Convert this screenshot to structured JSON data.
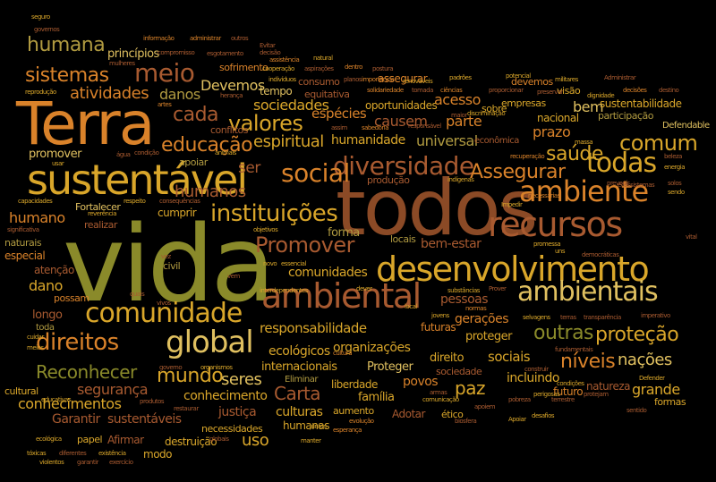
{
  "palette": {
    "background": "#000000",
    "olive": "#8a8a2a",
    "gold": "#d9a62a",
    "orange": "#d9822a",
    "brown": "#8b4a26",
    "rust": "#a85a30",
    "lightgold": "#e0c060",
    "khaki": "#b09a40"
  },
  "words": [
    {
      "id": "vida",
      "text": "vida"
    },
    {
      "id": "todos",
      "text": "todos"
    },
    {
      "id": "terra",
      "text": "Terra"
    },
    {
      "id": "sustentavel",
      "text": "sustentável"
    },
    {
      "id": "desenvolvimento",
      "text": "desenvolvimento"
    },
    {
      "id": "recursos",
      "text": "recursos"
    },
    {
      "id": "ambiental",
      "text": "ambiental"
    },
    {
      "id": "ambiente",
      "text": "ambiente"
    },
    {
      "id": "ambientais",
      "text": "ambientais"
    },
    {
      "id": "comunidade",
      "text": "comunidade"
    },
    {
      "id": "global",
      "text": "global"
    },
    {
      "id": "diversidade",
      "text": "diversidade"
    },
    {
      "id": "todas",
      "text": "todas"
    },
    {
      "id": "comum",
      "text": "comum"
    },
    {
      "id": "social",
      "text": "social"
    },
    {
      "id": "instituicoes",
      "text": "instituições"
    },
    {
      "id": "direitos",
      "text": "direitos"
    },
    {
      "id": "promover_cap",
      "text": "Promover"
    },
    {
      "id": "humana",
      "text": "humana"
    },
    {
      "id": "sistemas",
      "text": "sistemas"
    },
    {
      "id": "meio",
      "text": "meio"
    },
    {
      "id": "valores",
      "text": "valores"
    },
    {
      "id": "educacao",
      "text": "educação"
    },
    {
      "id": "espiritual",
      "text": "espiritual"
    },
    {
      "id": "cada",
      "text": "cada"
    },
    {
      "id": "atividades",
      "text": "atividades"
    },
    {
      "id": "danos",
      "text": "danos"
    },
    {
      "id": "devemos_cap",
      "text": "Devemos"
    },
    {
      "id": "sociedades",
      "text": "sociedades"
    },
    {
      "id": "especies",
      "text": "espécies"
    },
    {
      "id": "acesso",
      "text": "acesso"
    },
    {
      "id": "causem",
      "text": "causem"
    },
    {
      "id": "humanidade",
      "text": "humanidade"
    },
    {
      "id": "universal",
      "text": "universal"
    },
    {
      "id": "parte",
      "text": "parte"
    },
    {
      "id": "assegurar_cap",
      "text": "Assegurar"
    },
    {
      "id": "saude",
      "text": "saúde"
    },
    {
      "id": "prazo",
      "text": "prazo"
    },
    {
      "id": "bem",
      "text": "bem"
    },
    {
      "id": "nacional",
      "text": "nacional"
    },
    {
      "id": "sustentabilidade",
      "text": "sustentabilidade"
    },
    {
      "id": "participacao",
      "text": "participação"
    },
    {
      "id": "defendable",
      "text": "Defendable"
    },
    {
      "id": "promover",
      "text": "promover"
    },
    {
      "id": "apoiar",
      "text": "apoiar"
    },
    {
      "id": "ser",
      "text": "ser"
    },
    {
      "id": "humanos",
      "text": "humanos"
    },
    {
      "id": "humano",
      "text": "humano"
    },
    {
      "id": "fortalecer",
      "text": "Fortalecer"
    },
    {
      "id": "realizar",
      "text": "realizar"
    },
    {
      "id": "cumprir",
      "text": "cumprir"
    },
    {
      "id": "forma",
      "text": "forma"
    },
    {
      "id": "comunidades",
      "text": "comunidades"
    },
    {
      "id": "bem_estar",
      "text": "bem-estar"
    },
    {
      "id": "locais",
      "text": "locais"
    },
    {
      "id": "pessoas",
      "text": "pessoas"
    },
    {
      "id": "geracoes",
      "text": "gerações"
    },
    {
      "id": "responsabilidade",
      "text": "responsabilidade"
    },
    {
      "id": "futuras",
      "text": "futuras"
    },
    {
      "id": "outras",
      "text": "outras"
    },
    {
      "id": "protecao",
      "text": "proteção"
    },
    {
      "id": "proteger",
      "text": "proteger"
    },
    {
      "id": "dano",
      "text": "dano"
    },
    {
      "id": "possam",
      "text": "possam"
    },
    {
      "id": "longo",
      "text": "longo"
    },
    {
      "id": "toda",
      "text": "toda"
    },
    {
      "id": "ecologicos",
      "text": "ecológicos"
    },
    {
      "id": "organizacoes",
      "text": "organizações"
    },
    {
      "id": "internacionais",
      "text": "internacionais"
    },
    {
      "id": "direito",
      "text": "direito"
    },
    {
      "id": "sociais",
      "text": "sociais"
    },
    {
      "id": "niveis",
      "text": "níveis"
    },
    {
      "id": "nacoes",
      "text": "nações"
    },
    {
      "id": "reconhecer",
      "text": "Reconhecer"
    },
    {
      "id": "seguranca",
      "text": "segurança"
    },
    {
      "id": "mundo",
      "text": "mundo"
    },
    {
      "id": "seres",
      "text": "seres"
    },
    {
      "id": "carta",
      "text": "Carta"
    },
    {
      "id": "liberdade",
      "text": "liberdade"
    },
    {
      "id": "familia",
      "text": "família"
    },
    {
      "id": "povos",
      "text": "povos"
    },
    {
      "id": "paz",
      "text": "paz"
    },
    {
      "id": "incluindo",
      "text": "incluindo"
    },
    {
      "id": "proteger_cap",
      "text": "Proteger"
    },
    {
      "id": "sociedade",
      "text": "sociedade"
    },
    {
      "id": "grande",
      "text": "grande"
    },
    {
      "id": "conhecimentos",
      "text": "conhecimentos"
    },
    {
      "id": "conhecimento",
      "text": "conhecimento"
    },
    {
      "id": "justica",
      "text": "justiça"
    },
    {
      "id": "culturas",
      "text": "culturas"
    },
    {
      "id": "garantir_cap",
      "text": "Garantir"
    },
    {
      "id": "sustentaveis",
      "text": "sustentáveis"
    },
    {
      "id": "eliminar",
      "text": "Eliminar"
    },
    {
      "id": "humanas",
      "text": "humanas"
    },
    {
      "id": "necessidades",
      "text": "necessidades"
    },
    {
      "id": "uso",
      "text": "uso"
    },
    {
      "id": "destruicao",
      "text": "destruição"
    },
    {
      "id": "afirmar",
      "text": "Afirmar"
    },
    {
      "id": "papel",
      "text": "papel"
    },
    {
      "id": "modo",
      "text": "modo"
    },
    {
      "id": "cultural",
      "text": "cultural"
    },
    {
      "id": "atencao",
      "text": "atenção"
    },
    {
      "id": "especial",
      "text": "especial"
    },
    {
      "id": "naturais",
      "text": "naturais"
    },
    {
      "id": "principios",
      "text": "princípios"
    },
    {
      "id": "sofrimento",
      "text": "sofrimento"
    },
    {
      "id": "tempo",
      "text": "tempo"
    },
    {
      "id": "conflitos",
      "text": "conflitos"
    },
    {
      "id": "consumo",
      "text": "consumo"
    },
    {
      "id": "equitativa",
      "text": "equitativa"
    },
    {
      "id": "oportunidades",
      "text": "oportunidades"
    },
    {
      "id": "assegurar",
      "text": "assegurar"
    },
    {
      "id": "empresas",
      "text": "empresas"
    },
    {
      "id": "sobre",
      "text": "sobre"
    },
    {
      "id": "visao",
      "text": "visão"
    },
    {
      "id": "devemos",
      "text": "devemos"
    },
    {
      "id": "formas",
      "text": "formas"
    },
    {
      "id": "etico",
      "text": "ético"
    },
    {
      "id": "adotar",
      "text": "Adotar"
    },
    {
      "id": "aumento",
      "text": "aumento"
    },
    {
      "id": "civil",
      "text": "civil"
    },
    {
      "id": "producao",
      "text": "produção"
    },
    {
      "id": "economica",
      "text": "econômica"
    },
    {
      "id": "natureza",
      "text": "natureza"
    },
    {
      "id": "futuro",
      "text": "futuro"
    },
    {
      "id": "seguro",
      "text": "seguro"
    },
    {
      "id": "governos",
      "text": "governos"
    },
    {
      "id": "informacao",
      "text": "informação"
    },
    {
      "id": "administrar",
      "text": "administrar"
    },
    {
      "id": "outros",
      "text": "outros"
    },
    {
      "id": "compromisso",
      "text": "compromisso"
    },
    {
      "id": "esgotamento",
      "text": "esgotamento"
    },
    {
      "id": "assistencia",
      "text": "assistência"
    },
    {
      "id": "natural",
      "text": "natural"
    },
    {
      "id": "cooperacao",
      "text": "cooperação"
    },
    {
      "id": "aspiracoes",
      "text": "aspirações"
    },
    {
      "id": "dentro",
      "text": "dentro"
    },
    {
      "id": "postura",
      "text": "postura"
    },
    {
      "id": "reproducao",
      "text": "reprodução"
    },
    {
      "id": "artes",
      "text": "artes"
    },
    {
      "id": "heranca",
      "text": "herança"
    },
    {
      "id": "individuos",
      "text": "indivíduos"
    },
    {
      "id": "importancia",
      "text": "importância"
    },
    {
      "id": "renovaveis",
      "text": "renováveis"
    },
    {
      "id": "padroes",
      "text": "padrões"
    },
    {
      "id": "militares",
      "text": "militares"
    },
    {
      "id": "solidariedade",
      "text": "solidariedade"
    },
    {
      "id": "tomada",
      "text": "tomada"
    },
    {
      "id": "ciencias",
      "text": "ciências"
    },
    {
      "id": "proporcionar",
      "text": "proporcionar"
    },
    {
      "id": "preservar",
      "text": "preservar"
    },
    {
      "id": "dignidade",
      "text": "dignidade"
    },
    {
      "id": "decisoes",
      "text": "decisões"
    },
    {
      "id": "destino",
      "text": "destino"
    },
    {
      "id": "discriminacao",
      "text": "discriminação"
    },
    {
      "id": "potencial",
      "text": "potencial"
    },
    {
      "id": "administrar_cap",
      "text": "Administrar"
    },
    {
      "id": "evitar",
      "text": "Evitar"
    },
    {
      "id": "decisao",
      "text": "decisão"
    },
    {
      "id": "mulheres",
      "text": "mulheres"
    },
    {
      "id": "assim",
      "text": "assim"
    },
    {
      "id": "sabedoria",
      "text": "sabedoria"
    },
    {
      "id": "responsavel",
      "text": "responsável"
    },
    {
      "id": "massa",
      "text": "massa"
    },
    {
      "id": "beleza",
      "text": "beleza"
    },
    {
      "id": "energia",
      "text": "energia"
    },
    {
      "id": "prevenir",
      "text": "prevenir"
    },
    {
      "id": "ecossistemas",
      "text": "ecossistemas"
    },
    {
      "id": "solos",
      "text": "solos"
    },
    {
      "id": "sendo",
      "text": "sendo"
    },
    {
      "id": "necessarias",
      "text": "necessárias"
    },
    {
      "id": "impedir",
      "text": "Impedir"
    },
    {
      "id": "indigenas",
      "text": "indígenas"
    },
    {
      "id": "recuperacao",
      "text": "recuperação"
    },
    {
      "id": "animais",
      "text": "animais"
    },
    {
      "id": "agua",
      "text": "água"
    },
    {
      "id": "condicao",
      "text": "condição"
    },
    {
      "id": "usar",
      "text": "usar"
    },
    {
      "id": "capacidades",
      "text": "capacidades"
    },
    {
      "id": "respeito",
      "text": "respeito"
    },
    {
      "id": "consequencias",
      "text": "consequências"
    },
    {
      "id": "reverencia",
      "text": "reverência"
    },
    {
      "id": "significativa",
      "text": "significativa"
    },
    {
      "id": "objetivos",
      "text": "objetivos"
    },
    {
      "id": "promessa",
      "text": "promessa"
    },
    {
      "id": "democraticas",
      "text": "democráticas"
    },
    {
      "id": "uns",
      "text": "uns"
    },
    {
      "id": "vital",
      "text": "vital"
    },
    {
      "id": "essencial",
      "text": "essencial"
    },
    {
      "id": "novo",
      "text": "novo"
    },
    {
      "id": "vez",
      "text": "vez"
    },
    {
      "id": "vem",
      "text": "vem"
    },
    {
      "id": "interdependentes",
      "text": "interdependentes"
    },
    {
      "id": "dever",
      "text": "dever"
    },
    {
      "id": "substancias",
      "text": "substâncias"
    },
    {
      "id": "prover",
      "text": "Prover"
    },
    {
      "id": "quais",
      "text": "quais"
    },
    {
      "id": "vivos",
      "text": "vivos"
    },
    {
      "id": "jovens",
      "text": "jovens"
    },
    {
      "id": "normas",
      "text": "normas"
    },
    {
      "id": "selvagens",
      "text": "selvagens"
    },
    {
      "id": "terras",
      "text": "terras"
    },
    {
      "id": "transparencia",
      "text": "transparência"
    },
    {
      "id": "imperativo",
      "text": "imperativo"
    },
    {
      "id": "cuidar",
      "text": "cuidar"
    },
    {
      "id": "meios",
      "text": "meios"
    },
    {
      "id": "cultura",
      "text": "cultura"
    },
    {
      "id": "local",
      "text": "local"
    },
    {
      "id": "fundamentais",
      "text": "fundamentais"
    },
    {
      "id": "construir",
      "text": "construir"
    },
    {
      "id": "governo",
      "text": "governo"
    },
    {
      "id": "organismos",
      "text": "organismos"
    },
    {
      "id": "armas",
      "text": "armas"
    },
    {
      "id": "perigosas",
      "text": "perigosas"
    },
    {
      "id": "protejam",
      "text": "protejam"
    },
    {
      "id": "defender",
      "text": "Defender"
    },
    {
      "id": "educativas",
      "text": "educativas"
    },
    {
      "id": "produtos",
      "text": "produtos"
    },
    {
      "id": "restaurar",
      "text": "restaurar"
    },
    {
      "id": "evolucao",
      "text": "evolução"
    },
    {
      "id": "comunicacao",
      "text": "comunicação"
    },
    {
      "id": "apoiem",
      "text": "apoiem"
    },
    {
      "id": "pobreza",
      "text": "pobreza"
    },
    {
      "id": "terrestre",
      "text": "terrestre"
    },
    {
      "id": "sentido",
      "text": "sentido"
    },
    {
      "id": "ecologica",
      "text": "ecológica"
    },
    {
      "id": "manter",
      "text": "manter"
    },
    {
      "id": "esperanca",
      "text": "esperança"
    },
    {
      "id": "biosfera",
      "text": "biosfera"
    },
    {
      "id": "apoiar_cap",
      "text": "Apoiar"
    },
    {
      "id": "desafios",
      "text": "desafios"
    },
    {
      "id": "toxicas",
      "text": "tóxicas"
    },
    {
      "id": "diferentes",
      "text": "diferentes"
    },
    {
      "id": "existencia",
      "text": "existência"
    },
    {
      "id": "globais",
      "text": "globais"
    },
    {
      "id": "planos",
      "text": "planos"
    },
    {
      "id": "juntos",
      "text": "juntos"
    },
    {
      "id": "violentos",
      "text": "violentos"
    },
    {
      "id": "garantir",
      "text": "garantir"
    },
    {
      "id": "exercicio",
      "text": "exercício"
    },
    {
      "id": "condicoes",
      "text": "condições"
    },
    {
      "id": "maior",
      "text": "maior"
    }
  ]
}
